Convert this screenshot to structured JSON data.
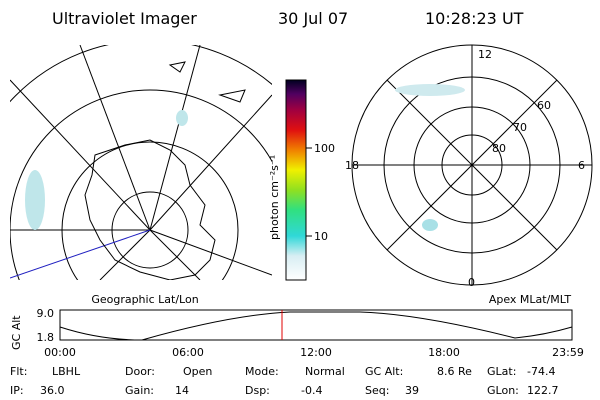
{
  "header": {
    "title": "Ultraviolet Imager",
    "date": "30 Jul 07",
    "time": "10:28:23 UT"
  },
  "left_panel": {
    "label": "Geographic Lat/Lon"
  },
  "colorbar": {
    "label": "photon cm⁻²s⁻¹",
    "ticks": [
      "100",
      "10"
    ]
  },
  "right_panel": {
    "label": "Apex MLat/MLT",
    "mlt_labels": [
      "12",
      "18",
      "6",
      "0"
    ],
    "mlat_labels": [
      "60",
      "70",
      "80"
    ]
  },
  "timeline": {
    "y_label": "GC Alt",
    "y_ticks": [
      "9.0",
      "1.8"
    ],
    "x_ticks": [
      "00:00",
      "06:00",
      "12:00",
      "18:00",
      "23:59"
    ]
  },
  "info": [
    [
      {
        "label": "Flt:",
        "value": "LBHL"
      },
      {
        "label": "Door:",
        "value": "Open"
      },
      {
        "label": "Mode:",
        "value": "Normal"
      },
      {
        "label": "GC Alt:",
        "value": "8.6 Re"
      },
      {
        "label": "GLat:",
        "value": "-74.4"
      }
    ],
    [
      {
        "label": "IP:",
        "value": "36.0"
      },
      {
        "label": "Gain:",
        "value": "14"
      },
      {
        "label": "Dsp:",
        "value": "-0.4"
      },
      {
        "label": "Seq:",
        "value": "39"
      },
      {
        "label": "GLon:",
        "value": "122.7"
      }
    ]
  ]
}
